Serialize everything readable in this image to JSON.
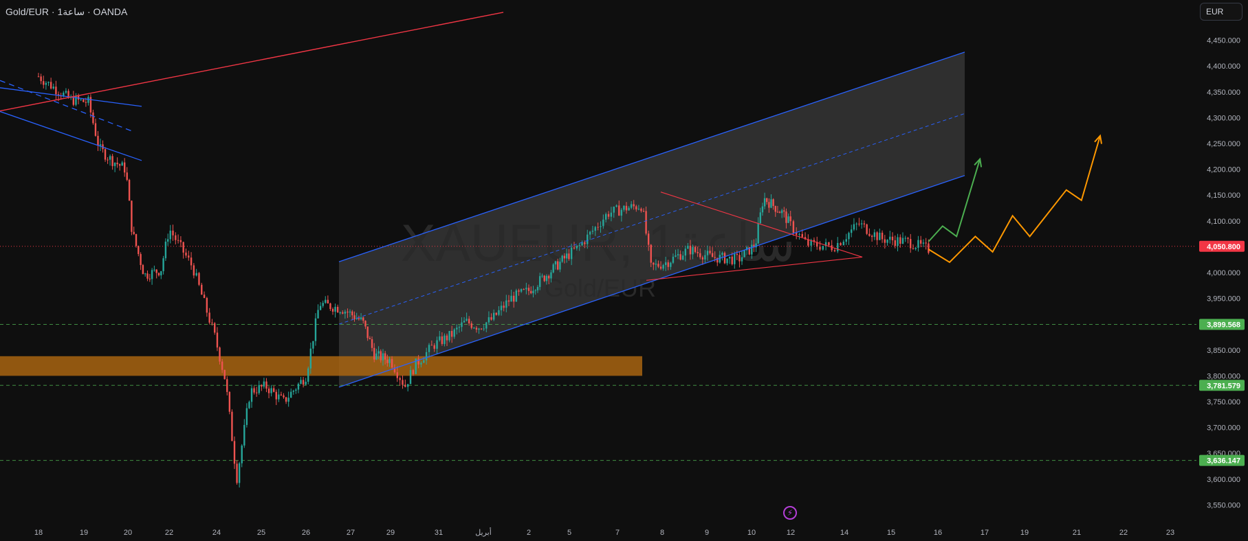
{
  "header": {
    "symbol_text": "Gold/EUR · 1ساعة · OANDA"
  },
  "scale": {
    "currency_label": "EUR"
  },
  "colors": {
    "background": "#0f0f0f",
    "up_candle": "#26a69a",
    "down_candle": "#ef5350",
    "channel_line": "#2962ff",
    "channel_fill": "#3b3b3b",
    "red_line": "#f23645",
    "green_arrow": "#4caf50",
    "orange_arrow": "#ff9800",
    "demand_zone": "#a86411",
    "current_price_tag": "#f23645",
    "level_tag": "#4caf50"
  },
  "watermark": {
    "ticker": "XAUEUR, 1ساعة",
    "name": "Gold/EUR"
  },
  "icons": {
    "bolt": "lightning-icon"
  },
  "chart_data": {
    "type": "candlestick",
    "interval": "1H",
    "ylim": [
      3520,
      4480
    ],
    "y_ticks": [
      "4,450.000",
      "4,400.000",
      "4,350.000",
      "4,300.000",
      "4,250.000",
      "4,200.000",
      "4,150.000",
      "4,100.000",
      "4,000.000",
      "3,950.000",
      "3,850.000",
      "3,800.000",
      "3,750.000",
      "3,700.000",
      "3,650.000",
      "3,600.000",
      "3,550.000"
    ],
    "y_tick_values": [
      4450,
      4400,
      4350,
      4300,
      4250,
      4200,
      4150,
      4100,
      4000,
      3950,
      3850,
      3800,
      3750,
      3700,
      3650,
      3600,
      3550
    ],
    "x_ticks": [
      "18",
      "19",
      "20",
      "22",
      "24",
      "25",
      "26",
      "27",
      "29",
      "31",
      "أبريل",
      "2",
      "5",
      "7",
      "8",
      "9",
      "10",
      "12",
      "14",
      "15",
      "16",
      "17",
      "19",
      "21",
      "22",
      "23"
    ],
    "current_price": {
      "label": "4,050.800",
      "value": 4050.8
    },
    "levels": [
      {
        "label": "3,899.568",
        "value": 3899.568
      },
      {
        "label": "3,781.579",
        "value": 3781.579
      },
      {
        "label": "3,636.147",
        "value": 3636.147
      }
    ],
    "demand_zone": {
      "from": 3800,
      "to": 3838
    },
    "price_path": [
      [
        0,
        4380
      ],
      [
        0.7,
        4335
      ],
      [
        1.1,
        4330
      ],
      [
        1.35,
        4240
      ],
      [
        1.6,
        4220
      ],
      [
        1.95,
        4200
      ],
      [
        2.1,
        4080
      ],
      [
        2.4,
        3995
      ],
      [
        2.8,
        4005
      ],
      [
        3.0,
        4085
      ],
      [
        3.5,
        4010
      ],
      [
        3.95,
        3880
      ],
      [
        4.2,
        3790
      ],
      [
        4.45,
        3600
      ],
      [
        4.75,
        3770
      ],
      [
        5.1,
        3780
      ],
      [
        5.5,
        3750
      ],
      [
        6.0,
        3800
      ],
      [
        6.3,
        3940
      ],
      [
        6.8,
        3930
      ],
      [
        7.3,
        3905
      ],
      [
        7.6,
        3840
      ],
      [
        8.0,
        3830
      ],
      [
        8.3,
        3780
      ],
      [
        8.5,
        3820
      ],
      [
        8.9,
        3860
      ],
      [
        9.3,
        3880
      ],
      [
        9.6,
        3905
      ],
      [
        9.9,
        3895
      ],
      [
        10.2,
        3910
      ],
      [
        10.6,
        3950
      ],
      [
        11.0,
        3965
      ],
      [
        11.5,
        4000
      ],
      [
        12.2,
        4050
      ],
      [
        12.8,
        4115
      ],
      [
        13.2,
        4125
      ],
      [
        13.55,
        4130
      ],
      [
        13.75,
        4010
      ],
      [
        14.1,
        4020
      ],
      [
        14.6,
        4045
      ],
      [
        15.1,
        4030
      ],
      [
        15.7,
        4025
      ],
      [
        16.1,
        4055
      ],
      [
        16.3,
        4145
      ],
      [
        16.8,
        4115
      ],
      [
        17.3,
        4055
      ],
      [
        17.8,
        4050
      ],
      [
        18.3,
        4095
      ],
      [
        18.8,
        4065
      ],
      [
        19.35,
        4060
      ],
      [
        19.8,
        4045
      ]
    ],
    "projection_green": [
      [
        19.8,
        4060
      ],
      [
        20.1,
        4090
      ],
      [
        20.4,
        4070
      ],
      [
        20.9,
        4220
      ]
    ],
    "projection_orange": [
      [
        19.8,
        4045
      ],
      [
        20.25,
        4020
      ],
      [
        20.8,
        4070
      ],
      [
        21.2,
        4040
      ],
      [
        21.7,
        4110
      ],
      [
        22.1,
        4070
      ],
      [
        22.8,
        4160
      ],
      [
        23.1,
        4140
      ],
      [
        23.5,
        4265
      ]
    ]
  }
}
